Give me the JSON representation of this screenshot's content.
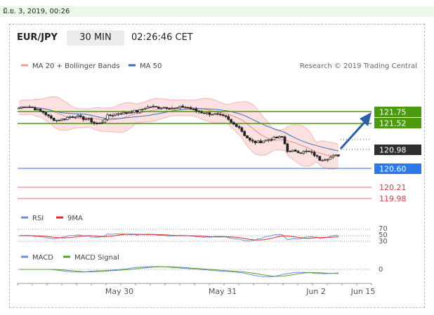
{
  "status_bar": {
    "datetime": "มิ.ย. 3, 2019, 00:26"
  },
  "header": {
    "pair": "EUR/JPY",
    "timeframe": "30 MIN",
    "clock": "02:26:46 CET"
  },
  "credit": "Research © 2019 Trading Central",
  "colors": {
    "bollinger": "#f29a9a",
    "ma50": "#3b6fb6",
    "resistance": "#4c9a0e",
    "support": "#2f78e8",
    "target": "#e86a6a",
    "rsi": "#6b8ed6",
    "rsi_ma": "#d92b2b",
    "macd": "#6b8ed6",
    "macd_signal": "#5aa02c",
    "arrow": "#2c5fa8",
    "price_tag": "#2f2f2f"
  },
  "chart_data": {
    "type": "candlestick",
    "legend": [
      {
        "label": "MA 20 + Bollinger Bands",
        "color": "#f29a9a"
      },
      {
        "label": "MA 50",
        "color": "#3b6fb6"
      }
    ],
    "x_ticks": [
      "May 30",
      "May 31",
      "Jun 2",
      "Jun 15"
    ],
    "last_price": "120.98",
    "levels": [
      {
        "value": "121.75",
        "kind": "resistance",
        "tagged": true
      },
      {
        "value": "121.52",
        "kind": "resistance",
        "tagged": true
      },
      {
        "value": "120.60",
        "kind": "support",
        "tagged": true
      },
      {
        "value": "120.21",
        "kind": "target",
        "tagged": false
      },
      {
        "value": "119.98",
        "kind": "target",
        "tagged": false
      }
    ],
    "price_path": [
      121.95,
      122.0,
      121.97,
      121.9,
      121.85,
      121.72,
      121.68,
      121.7,
      121.75,
      121.78,
      121.72,
      121.7,
      121.62,
      121.6,
      121.76,
      121.8,
      121.84,
      121.83,
      121.88,
      121.87,
      121.95,
      121.98,
      121.96,
      121.97,
      121.96,
      121.93,
      121.98,
      121.96,
      121.9,
      121.86,
      121.83,
      121.82,
      121.78,
      121.74,
      121.6,
      121.55,
      121.35,
      121.2,
      121.18,
      121.22,
      121.25,
      121.28,
      121.3,
      120.95,
      121.0,
      120.96,
      120.98,
      120.92,
      120.8,
      120.82,
      120.86,
      120.9
    ],
    "rsi": {
      "series": [
        "RSI",
        "9MA"
      ],
      "levels": [
        "70",
        "50",
        "30"
      ]
    },
    "macd": {
      "series": [
        "MACD",
        "MACD Signal"
      ],
      "zero_label": "0"
    }
  }
}
